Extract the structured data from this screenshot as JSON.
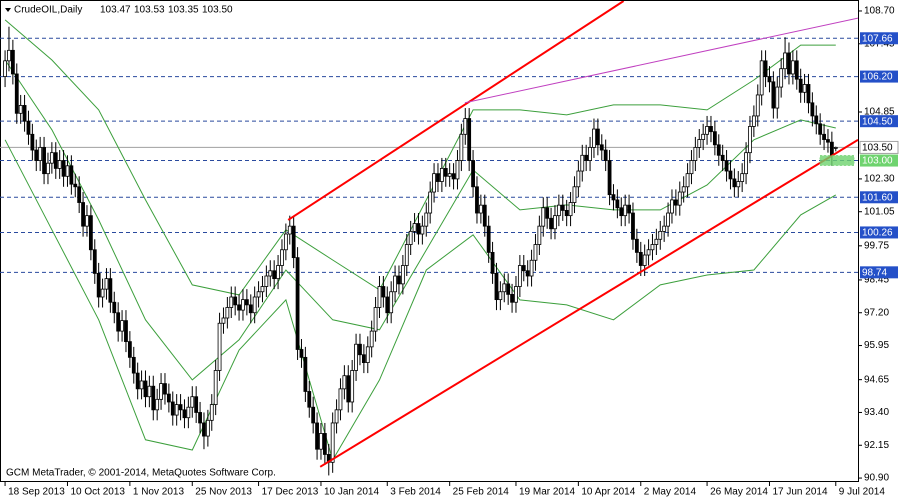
{
  "chart_data": {
    "type": "candlestick",
    "title": "CrudeOIL,Daily",
    "quote_labels": [
      "103.47",
      "103.53",
      "103.35",
      "103.50"
    ],
    "footer": "GCM MetaTrader, © 2001-2014, MetaQuotes Software Corp.",
    "open": [
      106.2,
      106.8,
      107.2,
      106.3,
      104.8,
      105.1,
      104.5,
      104.0,
      103.4,
      103.0,
      103.5,
      102.5,
      102.9,
      103.3,
      102.7,
      103.0,
      102.4,
      102.8,
      102.1,
      102.0,
      101.4,
      100.5,
      100.9,
      99.6,
      98.7,
      97.8,
      98.1,
      98.5,
      97.6,
      97.2,
      96.5,
      96.9,
      96.1,
      95.5,
      94.9,
      94.3,
      94.6,
      94.0,
      94.4,
      93.5,
      93.9,
      94.5,
      94.1,
      93.8,
      93.3,
      93.7,
      93.5,
      93.2,
      93.6,
      94.0,
      93.4,
      93.0,
      92.5,
      93.1,
      93.7,
      95.0,
      96.8,
      97.0,
      97.4,
      97.8,
      97.5,
      97.3,
      97.7,
      97.5,
      97.2,
      97.8,
      98.0,
      98.2,
      98.6,
      98.8,
      98.5,
      99.0,
      99.6,
      100.2,
      100.5,
      99.3,
      95.8,
      95.5,
      94.2,
      93.6,
      93.0,
      92.0,
      92.6,
      91.8,
      91.5,
      93.0,
      93.5,
      94.3,
      94.8,
      93.8,
      95.0,
      96.0,
      95.6,
      95.3,
      95.9,
      96.5,
      97.4,
      98.2,
      97.8,
      97.2,
      98.0,
      98.6,
      98.3,
      99.0,
      99.8,
      100.3,
      100.6,
      100.2,
      100.5,
      101.0,
      101.8,
      102.5,
      102.2,
      102.7,
      102.4,
      102.5,
      102.3,
      103.0,
      104.0,
      104.6,
      103.0,
      102.0,
      101.0,
      101.3,
      100.5,
      99.5,
      98.7,
      97.7,
      98.0,
      98.3,
      97.9,
      97.6,
      98.2,
      99.0,
      98.8,
      98.6,
      99.2,
      99.8,
      100.5,
      101.2,
      100.8,
      100.4,
      100.9,
      101.3,
      101.1,
      100.9,
      101.4,
      102.0,
      102.6,
      103.2,
      103.0,
      103.5,
      104.2,
      103.6,
      103.4,
      103.0,
      101.7,
      101.5,
      101.2,
      100.9,
      101.3,
      101.0,
      100.0,
      99.5,
      99.0,
      99.4,
      99.6,
      99.8,
      100.0,
      100.3,
      100.5,
      101.0,
      101.5,
      101.3,
      101.8,
      102.0,
      102.5,
      103.0,
      103.5,
      103.8,
      104.0,
      104.3,
      104.1,
      103.6,
      103.2,
      103.0,
      102.6,
      102.3,
      102.0,
      102.2,
      102.5,
      103.3,
      104.3,
      104.7,
      105.5,
      106.8,
      106.2,
      106.0,
      105.0,
      105.8,
      106.5,
      107.1,
      106.3,
      106.8,
      106.1,
      105.6,
      105.9,
      105.2,
      104.7,
      104.4,
      104.0,
      103.8,
      103.7,
      103.47
    ],
    "high": [
      107.2,
      108.1,
      107.6,
      106.7,
      105.5,
      105.5,
      104.9,
      104.4,
      103.8,
      103.9,
      103.9,
      103.3,
      103.7,
      103.7,
      103.4,
      103.4,
      103.2,
      103.2,
      102.5,
      102.4,
      101.8,
      101.3,
      101.3,
      100.0,
      99.1,
      98.5,
      98.9,
      98.9,
      98.0,
      97.6,
      97.3,
      97.3,
      96.5,
      95.9,
      95.3,
      95.0,
      95.0,
      94.8,
      94.8,
      94.3,
      94.9,
      94.9,
      94.5,
      94.2,
      94.1,
      94.1,
      93.9,
      94.0,
      94.4,
      94.4,
      93.8,
      93.4,
      93.5,
      94.1,
      95.4,
      97.2,
      97.4,
      97.8,
      98.2,
      98.2,
      97.9,
      98.1,
      98.1,
      97.9,
      98.2,
      98.4,
      98.6,
      99.0,
      99.2,
      99.2,
      99.4,
      100.0,
      100.6,
      100.9,
      100.9,
      99.7,
      96.2,
      95.9,
      94.6,
      94.0,
      93.4,
      93.0,
      93.0,
      92.2,
      93.4,
      93.9,
      94.7,
      95.2,
      95.2,
      95.4,
      96.4,
      96.4,
      96.0,
      96.3,
      96.9,
      97.8,
      98.6,
      98.6,
      98.2,
      98.4,
      99.0,
      99.0,
      99.4,
      100.2,
      100.7,
      101.0,
      101.0,
      100.9,
      101.4,
      102.2,
      102.9,
      102.9,
      103.1,
      103.1,
      102.9,
      102.9,
      103.4,
      104.4,
      105.0,
      105.0,
      103.4,
      102.4,
      101.7,
      101.7,
      100.9,
      99.9,
      99.1,
      98.4,
      98.7,
      98.7,
      98.3,
      98.6,
      99.4,
      99.4,
      99.2,
      99.6,
      100.2,
      100.9,
      101.6,
      101.6,
      101.2,
      101.3,
      101.7,
      101.7,
      101.5,
      101.8,
      102.4,
      103.0,
      103.6,
      103.6,
      103.9,
      104.6,
      104.6,
      104.0,
      103.8,
      103.4,
      102.1,
      101.9,
      101.6,
      101.7,
      101.7,
      101.4,
      100.4,
      99.9,
      99.8,
      100.0,
      100.2,
      100.4,
      100.7,
      100.9,
      101.4,
      101.9,
      101.9,
      102.2,
      102.4,
      102.9,
      103.4,
      103.9,
      104.2,
      104.4,
      104.7,
      104.7,
      104.5,
      104.0,
      103.6,
      103.4,
      103.0,
      102.7,
      102.6,
      102.9,
      103.7,
      104.7,
      105.1,
      105.9,
      107.2,
      107.2,
      106.6,
      106.4,
      106.2,
      106.9,
      107.7,
      107.5,
      107.2,
      107.2,
      106.5,
      106.3,
      106.3,
      105.6,
      105.1,
      104.8,
      104.4,
      104.2,
      104.1,
      103.53
    ],
    "low": [
      105.8,
      106.4,
      105.9,
      104.4,
      104.4,
      104.1,
      103.6,
      103.0,
      102.6,
      102.6,
      102.1,
      102.1,
      102.5,
      102.3,
      102.3,
      102.0,
      102.0,
      101.7,
      101.6,
      101.0,
      100.1,
      100.1,
      99.2,
      98.3,
      97.4,
      97.4,
      97.7,
      97.2,
      96.8,
      96.1,
      96.1,
      95.7,
      95.1,
      94.5,
      93.9,
      93.9,
      93.6,
      93.6,
      93.1,
      93.1,
      93.5,
      93.7,
      93.4,
      92.9,
      92.9,
      93.1,
      92.8,
      92.8,
      93.2,
      93.0,
      92.6,
      92.0,
      92.1,
      92.7,
      93.3,
      94.6,
      96.4,
      96.6,
      97.0,
      97.1,
      96.9,
      96.9,
      97.1,
      96.8,
      96.8,
      97.4,
      97.6,
      97.8,
      98.2,
      98.1,
      98.1,
      98.6,
      99.2,
      99.8,
      98.9,
      95.4,
      95.1,
      93.8,
      93.2,
      92.6,
      91.6,
      91.6,
      91.4,
      91.0,
      91.1,
      92.6,
      93.1,
      93.9,
      93.4,
      93.4,
      94.6,
      95.2,
      94.9,
      94.9,
      95.5,
      96.1,
      97.0,
      97.4,
      96.8,
      96.8,
      97.6,
      97.9,
      97.9,
      98.6,
      99.4,
      99.9,
      99.8,
      99.8,
      100.1,
      100.6,
      101.4,
      101.8,
      101.8,
      102.0,
      102.0,
      101.9,
      101.9,
      102.6,
      103.6,
      102.6,
      101.6,
      100.6,
      100.6,
      100.1,
      99.1,
      98.3,
      97.3,
      97.3,
      97.6,
      97.5,
      97.2,
      97.2,
      97.8,
      98.4,
      98.2,
      98.2,
      98.8,
      99.4,
      100.1,
      100.4,
      100.0,
      100.0,
      100.5,
      100.7,
      100.5,
      100.5,
      101.0,
      101.6,
      102.2,
      102.6,
      102.6,
      103.1,
      103.2,
      103.0,
      102.6,
      101.3,
      101.1,
      100.8,
      100.5,
      100.5,
      100.6,
      99.6,
      99.1,
      98.6,
      98.6,
      99.0,
      99.2,
      99.4,
      99.6,
      99.9,
      100.1,
      100.6,
      100.9,
      100.9,
      101.4,
      101.6,
      102.1,
      102.6,
      103.1,
      103.4,
      103.6,
      103.7,
      103.2,
      102.8,
      102.6,
      102.2,
      101.9,
      101.6,
      101.6,
      101.8,
      102.1,
      102.9,
      103.9,
      104.3,
      105.1,
      105.8,
      105.6,
      104.6,
      104.6,
      105.4,
      106.1,
      105.9,
      105.9,
      105.7,
      105.2,
      105.2,
      104.8,
      104.3,
      104.0,
      103.6,
      103.4,
      103.3,
      102.8,
      103.35
    ],
    "close": [
      106.8,
      107.2,
      106.3,
      104.8,
      105.1,
      104.5,
      104.0,
      103.4,
      103.0,
      103.5,
      102.5,
      102.9,
      103.3,
      102.7,
      103.0,
      102.4,
      102.8,
      102.1,
      102.0,
      101.4,
      100.5,
      100.9,
      99.6,
      98.7,
      97.8,
      98.1,
      98.5,
      97.6,
      97.2,
      96.5,
      96.9,
      96.1,
      95.5,
      94.9,
      94.3,
      94.6,
      94.0,
      94.4,
      93.5,
      93.9,
      94.5,
      94.1,
      93.8,
      93.3,
      93.7,
      93.5,
      93.2,
      93.6,
      94.0,
      93.4,
      93.0,
      92.5,
      93.1,
      93.7,
      95.0,
      96.8,
      97.0,
      97.4,
      97.8,
      97.5,
      97.3,
      97.7,
      97.5,
      97.2,
      97.8,
      98.0,
      98.2,
      98.6,
      98.8,
      98.5,
      99.0,
      99.6,
      100.2,
      100.5,
      99.3,
      95.8,
      95.5,
      94.2,
      93.6,
      93.0,
      92.0,
      92.6,
      91.8,
      91.5,
      93.0,
      93.5,
      94.3,
      94.8,
      93.8,
      95.0,
      96.0,
      95.6,
      95.3,
      95.9,
      96.5,
      97.4,
      98.2,
      97.8,
      97.2,
      98.0,
      98.6,
      98.3,
      99.0,
      99.8,
      100.3,
      100.6,
      100.2,
      100.5,
      101.0,
      101.8,
      102.5,
      102.2,
      102.7,
      102.4,
      102.5,
      102.3,
      103.0,
      104.0,
      104.6,
      103.0,
      102.0,
      101.0,
      101.3,
      100.5,
      99.5,
      98.7,
      97.7,
      98.0,
      98.3,
      97.9,
      97.6,
      98.2,
      99.0,
      98.8,
      98.6,
      99.2,
      99.8,
      100.5,
      101.2,
      100.8,
      100.4,
      100.9,
      101.3,
      101.1,
      100.9,
      101.4,
      102.0,
      102.6,
      103.2,
      103.0,
      103.5,
      104.2,
      103.6,
      103.4,
      103.0,
      101.7,
      101.5,
      101.2,
      100.9,
      101.3,
      101.0,
      100.0,
      99.5,
      99.0,
      99.4,
      99.6,
      99.8,
      100.0,
      100.3,
      100.5,
      101.0,
      101.5,
      101.3,
      101.8,
      102.0,
      102.5,
      103.0,
      103.5,
      103.8,
      104.0,
      104.3,
      104.1,
      103.6,
      103.2,
      103.0,
      102.6,
      102.3,
      102.0,
      102.2,
      102.5,
      103.3,
      104.3,
      104.7,
      105.5,
      106.8,
      106.2,
      106.0,
      105.0,
      105.8,
      106.5,
      107.1,
      106.3,
      106.8,
      106.1,
      105.6,
      105.9,
      105.2,
      104.7,
      104.4,
      104.0,
      103.8,
      103.7,
      103.2,
      103.5
    ],
    "candle_colors": {
      "up": "#ffffff",
      "down": "#000000",
      "outline": "#000000"
    },
    "xlim": [
      -1.3,
      218.7
    ],
    "xticks": [
      {
        "value": 0,
        "label": "18 Sep 2013"
      },
      {
        "value": 16,
        "label": "10 Oct 2013"
      },
      {
        "value": 32,
        "label": "1 Nov 2013"
      },
      {
        "value": 48,
        "label": "25 Nov 2013"
      },
      {
        "value": 65,
        "label": "17 Dec 2013"
      },
      {
        "value": 81,
        "label": "10 Jan 2014"
      },
      {
        "value": 98,
        "label": "3 Feb 2014"
      },
      {
        "value": 114,
        "label": "25 Feb 2014"
      },
      {
        "value": 131,
        "label": "19 Mar 2014"
      },
      {
        "value": 147,
        "label": "10 Apr 2014"
      },
      {
        "value": 163,
        "label": "2 May 2014"
      },
      {
        "value": 180,
        "label": "26 May 2014"
      },
      {
        "value": 196,
        "label": "17 Jun 2014"
      },
      {
        "value": 213,
        "label": "9 Jul 2014"
      }
    ],
    "ylim": [
      90.75,
      109.08
    ],
    "yticks": [
      {
        "value": 108.7,
        "label": "108.70"
      },
      107.45,
      104.85,
      {
        "value": 102.3,
        "label": "102.30"
      },
      101.05,
      99.75,
      98.45,
      {
        "value": 97.2,
        "label": "97.20"
      },
      95.95,
      94.65,
      {
        "value": 93.4,
        "label": "93.40"
      },
      92.15,
      {
        "value": 90.9,
        "label": "90.90"
      }
    ],
    "bands": {
      "color": "#3c9f3c",
      "x": [
        0,
        12,
        24,
        36,
        48,
        60,
        72,
        84,
        96,
        108,
        120,
        132,
        144,
        156,
        168,
        180,
        192,
        204,
        213
      ],
      "upper": [
        108.36,
        106.83,
        104.93,
        101.5,
        98.26,
        97.88,
        100.36,
        99.21,
        98.07,
        101.5,
        104.93,
        104.93,
        104.74,
        105.12,
        105.12,
        104.93,
        106.07,
        107.4,
        107.4
      ],
      "middle": [
        106.83,
        104.17,
        100.74,
        96.93,
        94.64,
        96.17,
        98.83,
        96.93,
        96.55,
        99.59,
        102.64,
        101.12,
        101.31,
        101.12,
        101.12,
        102.07,
        103.79,
        104.55,
        104.24
      ],
      "lower": [
        103.79,
        100.36,
        96.93,
        92.36,
        91.97,
        95.78,
        97.69,
        91.59,
        94.64,
        98.83,
        100.17,
        97.69,
        97.5,
        96.93,
        98.26,
        98.64,
        98.83,
        100.93,
        101.69
      ]
    },
    "trendlines": [
      {
        "color": "#ff0000",
        "x": [
          72.6,
          158.6
        ],
        "values": [
          100.74,
          109.08
        ]
      },
      {
        "color": "#ff0000",
        "x": [
          80.8,
          218.7
        ],
        "values": [
          91.33,
          103.79
        ]
      },
      {
        "color": "#c040c0",
        "x": [
          117.9,
          218.7
        ],
        "values": [
          105.2,
          108.43
        ]
      }
    ],
    "levels": {
      "line_color": "#2a4a9e",
      "values": [
        107.66,
        {
          "value": 106.2,
          "label": "106.20"
        },
        {
          "value": 104.5,
          "label": "104.50"
        },
        {
          "value": 103.0,
          "label": "103.00"
        },
        {
          "value": 101.6,
          "label": "101.60"
        },
        100.26,
        98.74
      ],
      "colors": [
        "#2450c8",
        "#2450c8",
        "#2450c8",
        "#6ed36e",
        "#2450c8",
        "#2450c8",
        "#2450c8"
      ]
    },
    "last_price": {
      "value": 103.5,
      "label": "103.50",
      "color": "#a0a0a0"
    }
  }
}
